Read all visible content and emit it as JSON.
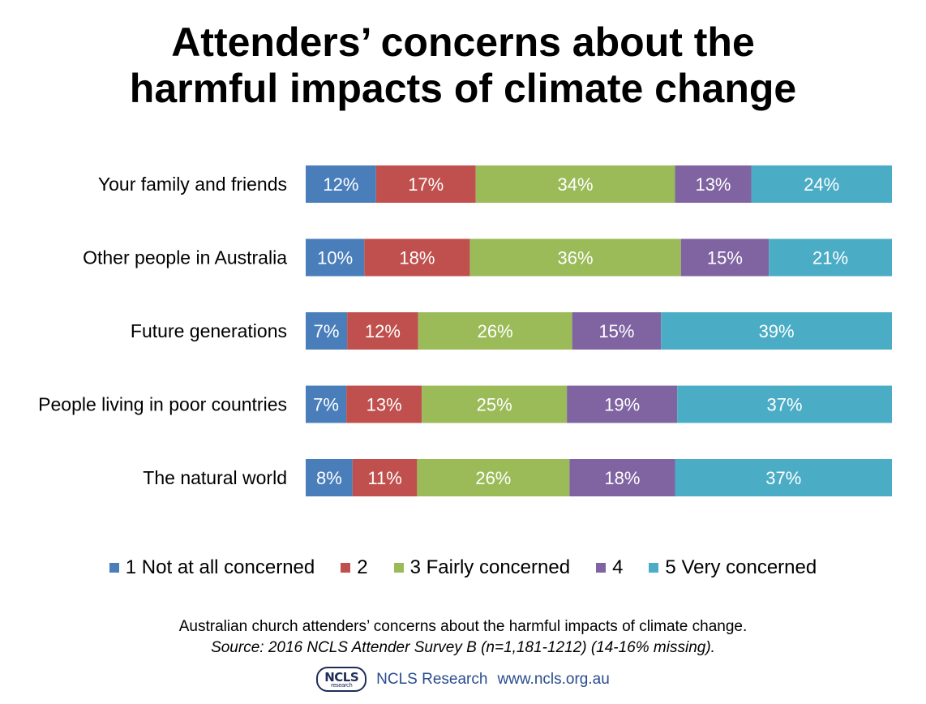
{
  "title_line1": "Attenders’ concerns about the",
  "title_line2": "harmful impacts of climate change",
  "chart_data": {
    "type": "bar",
    "orientation": "horizontal",
    "stacked": true,
    "categories": [
      "Your family and friends",
      "Other people in Australia",
      "Future generations",
      "People living in poor countries",
      "The natural world"
    ],
    "series": [
      {
        "name": "1 Not at all concerned",
        "color": "#4a7ebb",
        "values": [
          12,
          10,
          7,
          7,
          8
        ]
      },
      {
        "name": "2",
        "color": "#c0504d",
        "values": [
          17,
          18,
          12,
          13,
          11
        ]
      },
      {
        "name": "3 Fairly concerned",
        "color": "#9bbb59",
        "values": [
          34,
          36,
          26,
          25,
          26
        ]
      },
      {
        "name": "4",
        "color": "#8064a2",
        "values": [
          13,
          15,
          15,
          19,
          18
        ]
      },
      {
        "name": "5 Very concerned",
        "color": "#4bacc6",
        "values": [
          24,
          21,
          39,
          37,
          37
        ]
      }
    ],
    "value_suffix": "%",
    "legend_position": "bottom",
    "grid": false
  },
  "caption": "Australian church attenders’ concerns about the harmful impacts of climate change.",
  "source": "Source: 2016 NCLS Attender Survey B (n=1,181-1212) (14-16% missing).",
  "footer": {
    "logo_text": "NCLS",
    "logo_subtext": "research",
    "org": "NCLS Research",
    "url": "www.ncls.org.au"
  }
}
